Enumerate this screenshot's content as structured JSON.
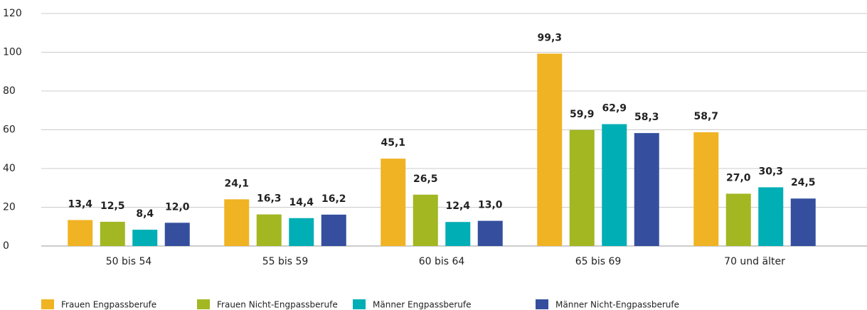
{
  "chart_data": {
    "type": "bar",
    "categories": [
      "50 bis 54",
      "55 bis 59",
      "60 bis 64",
      "65 bis 69",
      "70 und älter"
    ],
    "series": [
      {
        "name": "Frauen Engpassberufe",
        "color": "#f0b323",
        "values": [
          13.4,
          24.1,
          45.1,
          99.3,
          58.7
        ],
        "value_labels": [
          "13,4",
          "24,1",
          "45,1",
          "99,3",
          "58,7"
        ]
      },
      {
        "name": "Frauen Nicht-Engpassberufe",
        "color": "#a2b721",
        "values": [
          12.5,
          16.3,
          26.5,
          59.9,
          27.0
        ],
        "value_labels": [
          "12,5",
          "16,3",
          "26,5",
          "59,9",
          "27,0"
        ]
      },
      {
        "name": "Männer Engpassberufe",
        "color": "#00aeb5",
        "values": [
          8.4,
          14.4,
          12.4,
          62.9,
          30.3
        ],
        "value_labels": [
          "8,4",
          "14,4",
          "12,4",
          "62,9",
          "30,3"
        ]
      },
      {
        "name": "Männer Nicht-Engpassberufe",
        "color": "#354f9e",
        "values": [
          12.0,
          16.2,
          13.0,
          58.3,
          24.5
        ],
        "value_labels": [
          "12,0",
          "16,2",
          "13,0",
          "58,3",
          "24,5"
        ]
      }
    ],
    "ylim": [
      0,
      120
    ],
    "yticks": [
      0,
      20,
      40,
      60,
      80,
      100,
      120
    ],
    "grid": true,
    "legend": "bottom"
  }
}
